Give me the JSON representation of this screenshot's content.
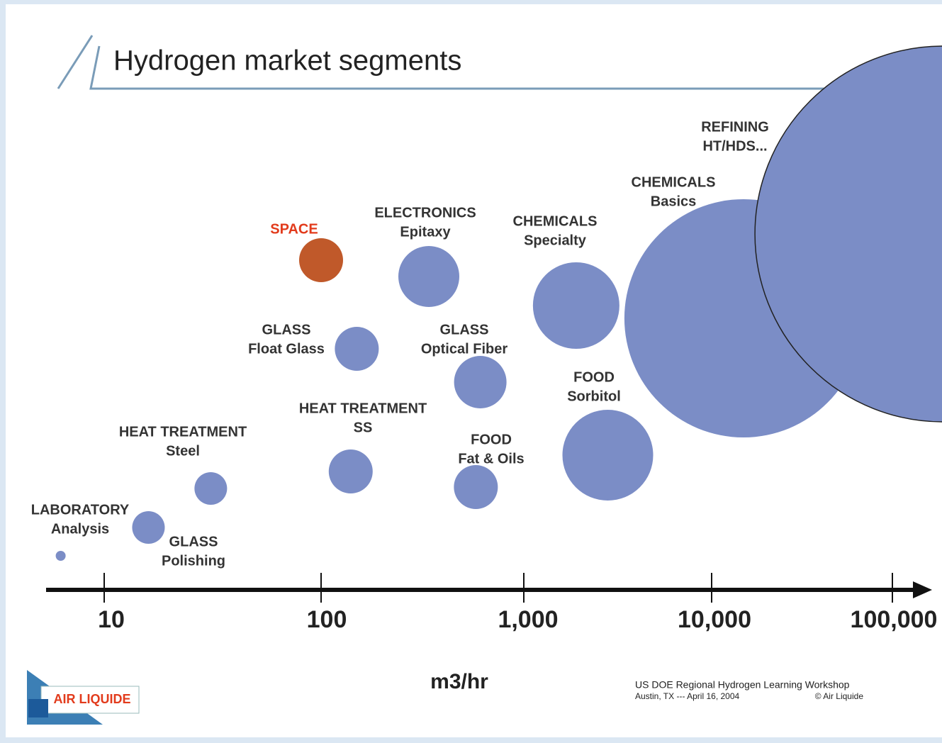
{
  "chart_data": {
    "type": "bubble",
    "title": "Hydrogen market segments",
    "x_label": "m3/hr",
    "log_x": true,
    "xlim": [
      5.4,
      145000
    ],
    "xticks": [
      10,
      100,
      {
        "value": 1000,
        "label": "1,000"
      },
      {
        "value": 10000,
        "label": "10,000"
      },
      {
        "value": 100000,
        "label": "100,000"
      }
    ],
    "labels": [
      [
        "LABORATORY",
        "Analysis"
      ],
      [
        "GLASS",
        "Polishing"
      ],
      [
        "HEAT TREATMENT",
        "Steel"
      ],
      [
        "GLASS",
        "Float Glass"
      ],
      [
        "HEAT TREATMENT",
        "SS"
      ],
      [
        "SPACE"
      ],
      [
        "ELECTRONICS",
        "Epitaxy"
      ],
      [
        "GLASS",
        "Optical Fiber"
      ],
      [
        "FOOD",
        "Fat & Oils"
      ],
      [
        "CHEMICALS",
        "Specialty"
      ],
      [
        "FOOD",
        "Sorbitol"
      ],
      [
        "CHEMICALS",
        "Basics"
      ],
      [
        "REFINING",
        "HT/HDS..."
      ]
    ],
    "x": [
      6.3,
      16,
      31,
      150,
      140,
      100,
      340,
      610,
      580,
      1900,
      2800,
      15000,
      190000
    ],
    "colors": [
      "#7b8dc6",
      "#7b8dc6",
      "#7b8dc6",
      "#7b8dc6",
      "#7b8dc6",
      "#c0592a",
      "#7b8dc6",
      "#7b8dc6",
      "#7b8dc6",
      "#7b8dc6",
      "#7b8dc6",
      "#7b8dc6",
      "#7b8dc6"
    ],
    "label_colors": [
      "#333",
      "#333",
      "#333",
      "#333",
      "#333",
      "#e23b1c",
      "#333",
      "#333",
      "#333",
      "#333",
      "#333",
      "#333",
      "#333"
    ],
    "footer": [
      "US DOE Regional Hydrogen Learning Workshop",
      "Austin, TX --- April 16, 2004",
      "© Air Liquide"
    ],
    "logo": "AIR LIQUIDE"
  }
}
